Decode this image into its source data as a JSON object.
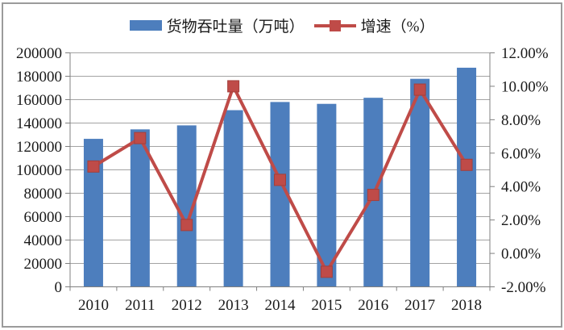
{
  "chart_data": {
    "type": "bar",
    "subtype": "combo-bar-line",
    "title": "",
    "categories": [
      "2010",
      "2011",
      "2012",
      "2013",
      "2014",
      "2015",
      "2016",
      "2017",
      "2018"
    ],
    "series": [
      {
        "name": "货物吞吐量（万吨）",
        "type": "bar",
        "axis": "left",
        "color": "#4D7EBD",
        "values": [
          126500,
          134600,
          138000,
          151000,
          158000,
          156400,
          161600,
          177800,
          187300
        ]
      },
      {
        "name": "增速（%）",
        "type": "line",
        "axis": "right",
        "color": "#BF4B48",
        "marker": "square",
        "marker_border_color": "#A33F3C",
        "values": [
          5.2,
          6.9,
          1.7,
          10.0,
          4.4,
          -1.1,
          3.5,
          9.8,
          5.3
        ]
      }
    ],
    "left_axis": {
      "min": 0,
      "max": 200000,
      "tick_step": 20000,
      "tick_values": [
        0,
        20000,
        40000,
        60000,
        80000,
        100000,
        120000,
        140000,
        160000,
        180000,
        200000
      ],
      "tick_labels": [
        "0",
        "20000",
        "40000",
        "60000",
        "80000",
        "100000",
        "120000",
        "140000",
        "160000",
        "180000",
        "200000"
      ]
    },
    "right_axis": {
      "min": -2,
      "max": 12,
      "tick_step": 2,
      "tick_values": [
        -2,
        0,
        2,
        4,
        6,
        8,
        10,
        12
      ],
      "tick_labels": [
        "-2.00%",
        "0.00%",
        "2.00%",
        "4.00%",
        "6.00%",
        "8.00%",
        "10.00%",
        "12.00%"
      ]
    },
    "grid": true,
    "legend_position": "top-center",
    "colors": {
      "gridline": "#A3A3A3",
      "axis_line": "#808080",
      "text": "#1A1A1A",
      "background": "#FFFFFF",
      "frame_border": "#9B9B9B"
    }
  }
}
